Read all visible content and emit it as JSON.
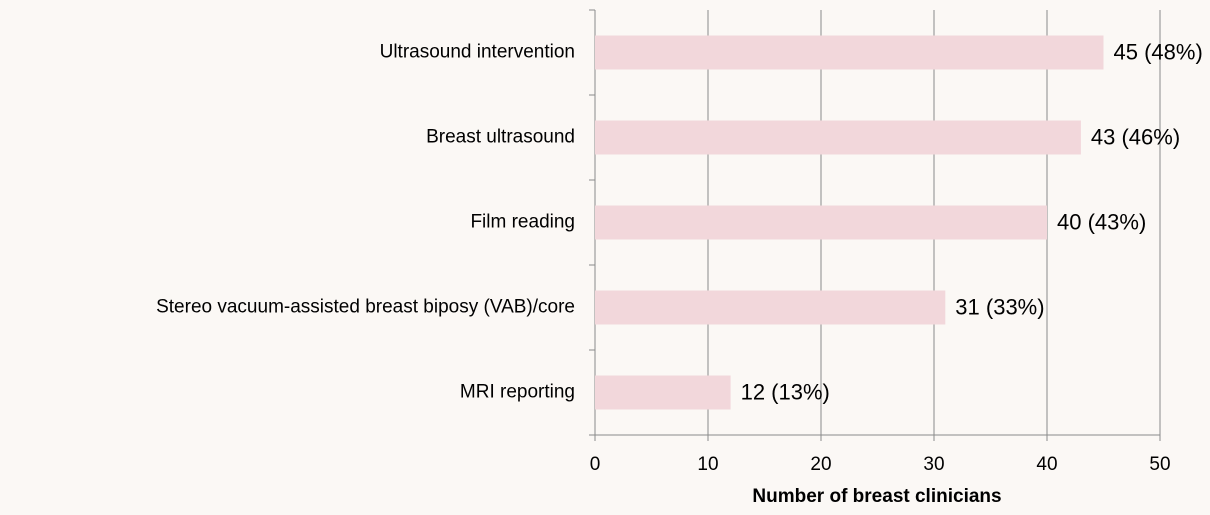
{
  "chart_data": {
    "type": "bar",
    "orientation": "horizontal",
    "x_label": "Number of breast clinicians",
    "categories": [
      "Ultrasound intervention",
      "Breast ultrasound",
      "Film reading",
      "Stereo vacuum-assisted breast biposy (VAB)/core",
      "MRI reporting"
    ],
    "values": [
      45,
      43,
      40,
      31,
      12
    ],
    "value_labels": [
      "45 (48%)",
      "43 (46%)",
      "40 (43%)",
      "31 (33%)",
      "12 (13%)"
    ],
    "color": "#f2d7db",
    "xlim": [
      0,
      50
    ],
    "xticks": [
      0,
      10,
      20,
      30,
      40,
      50
    ],
    "grid": true
  }
}
